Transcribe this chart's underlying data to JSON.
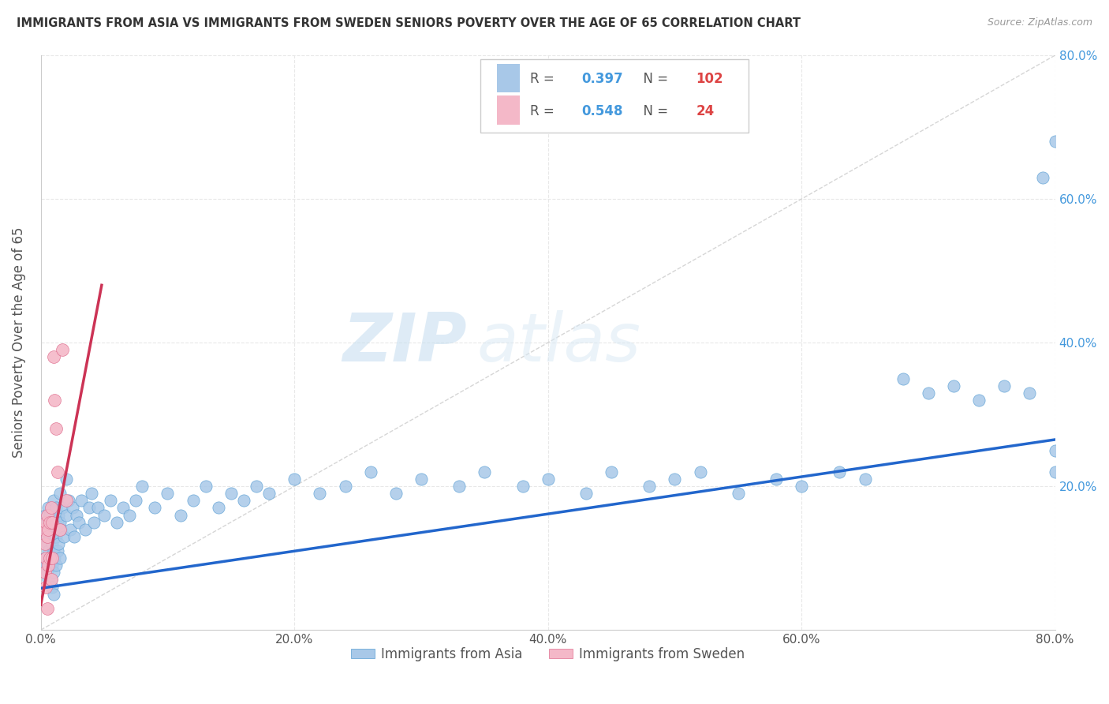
{
  "title": "IMMIGRANTS FROM ASIA VS IMMIGRANTS FROM SWEDEN SENIORS POVERTY OVER THE AGE OF 65 CORRELATION CHART",
  "source": "Source: ZipAtlas.com",
  "ylabel": "Seniors Poverty Over the Age of 65",
  "xlim": [
    0.0,
    0.8
  ],
  "ylim": [
    0.0,
    0.8
  ],
  "xticks": [
    0.0,
    0.2,
    0.4,
    0.6,
    0.8
  ],
  "yticks": [
    0.2,
    0.4,
    0.6,
    0.8
  ],
  "xticklabels": [
    "0.0%",
    "20.0%",
    "40.0%",
    "60.0%",
    "80.0%"
  ],
  "yticklabels_right": [
    "20.0%",
    "40.0%",
    "60.0%",
    "80.0%"
  ],
  "asia_color": "#a8c8e8",
  "asia_edge_color": "#5a9fd4",
  "sweden_color": "#f4b8c8",
  "sweden_edge_color": "#e07090",
  "asia_line_color": "#2266cc",
  "sweden_line_color": "#cc3355",
  "diagonal_color": "#dddddd",
  "asia_R": "0.397",
  "asia_N": "102",
  "sweden_R": "0.548",
  "sweden_N": "24",
  "watermark_zip": "ZIP",
  "watermark_atlas": "atlas",
  "background_color": "#ffffff",
  "grid_color": "#e8e8e8",
  "tick_color": "#4499dd",
  "legend_R_color": "#4499dd",
  "legend_N_color": "#dd4444",
  "asia_scatter_x": [
    0.002,
    0.003,
    0.003,
    0.004,
    0.004,
    0.005,
    0.005,
    0.005,
    0.006,
    0.006,
    0.006,
    0.007,
    0.007,
    0.007,
    0.008,
    0.008,
    0.008,
    0.009,
    0.009,
    0.009,
    0.009,
    0.01,
    0.01,
    0.01,
    0.01,
    0.01,
    0.011,
    0.011,
    0.012,
    0.012,
    0.012,
    0.013,
    0.013,
    0.014,
    0.014,
    0.015,
    0.015,
    0.015,
    0.016,
    0.017,
    0.018,
    0.02,
    0.02,
    0.022,
    0.023,
    0.025,
    0.026,
    0.028,
    0.03,
    0.032,
    0.035,
    0.038,
    0.04,
    0.042,
    0.045,
    0.05,
    0.055,
    0.06,
    0.065,
    0.07,
    0.075,
    0.08,
    0.09,
    0.1,
    0.11,
    0.12,
    0.13,
    0.14,
    0.15,
    0.16,
    0.17,
    0.18,
    0.2,
    0.22,
    0.24,
    0.26,
    0.28,
    0.3,
    0.33,
    0.35,
    0.38,
    0.4,
    0.43,
    0.45,
    0.48,
    0.5,
    0.52,
    0.55,
    0.58,
    0.6,
    0.63,
    0.65,
    0.68,
    0.7,
    0.72,
    0.74,
    0.76,
    0.78,
    0.79,
    0.8,
    0.8,
    0.8
  ],
  "asia_scatter_y": [
    0.14,
    0.1,
    0.16,
    0.09,
    0.13,
    0.15,
    0.12,
    0.08,
    0.17,
    0.11,
    0.07,
    0.13,
    0.09,
    0.16,
    0.14,
    0.1,
    0.07,
    0.15,
    0.12,
    0.09,
    0.06,
    0.18,
    0.14,
    0.11,
    0.08,
    0.05,
    0.13,
    0.1,
    0.17,
    0.13,
    0.09,
    0.15,
    0.11,
    0.16,
    0.12,
    0.19,
    0.15,
    0.1,
    0.14,
    0.17,
    0.13,
    0.21,
    0.16,
    0.18,
    0.14,
    0.17,
    0.13,
    0.16,
    0.15,
    0.18,
    0.14,
    0.17,
    0.19,
    0.15,
    0.17,
    0.16,
    0.18,
    0.15,
    0.17,
    0.16,
    0.18,
    0.2,
    0.17,
    0.19,
    0.16,
    0.18,
    0.2,
    0.17,
    0.19,
    0.18,
    0.2,
    0.19,
    0.21,
    0.19,
    0.2,
    0.22,
    0.19,
    0.21,
    0.2,
    0.22,
    0.2,
    0.21,
    0.19,
    0.22,
    0.2,
    0.21,
    0.22,
    0.19,
    0.21,
    0.2,
    0.22,
    0.21,
    0.35,
    0.33,
    0.34,
    0.32,
    0.34,
    0.33,
    0.63,
    0.68,
    0.22,
    0.25
  ],
  "sweden_scatter_x": [
    0.002,
    0.003,
    0.003,
    0.004,
    0.004,
    0.004,
    0.005,
    0.005,
    0.005,
    0.006,
    0.006,
    0.007,
    0.007,
    0.008,
    0.008,
    0.009,
    0.009,
    0.01,
    0.011,
    0.012,
    0.013,
    0.015,
    0.017,
    0.02
  ],
  "sweden_scatter_y": [
    0.14,
    0.12,
    0.08,
    0.15,
    0.1,
    0.06,
    0.16,
    0.13,
    0.03,
    0.14,
    0.09,
    0.15,
    0.1,
    0.17,
    0.07,
    0.15,
    0.1,
    0.38,
    0.32,
    0.28,
    0.22,
    0.14,
    0.39,
    0.18
  ],
  "asia_line_x": [
    0.0,
    0.8
  ],
  "asia_line_y": [
    0.058,
    0.265
  ],
  "sweden_line_x": [
    0.0,
    0.048
  ],
  "sweden_line_y": [
    0.035,
    0.48
  ]
}
